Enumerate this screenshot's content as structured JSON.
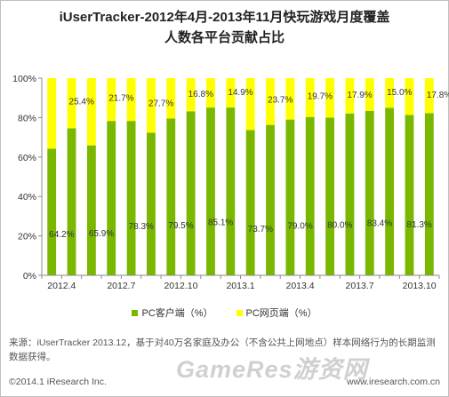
{
  "title_line1": "iUserTracker-2012年4月-2013年11月快玩游戏月度覆盖",
  "title_line2": "人数各平台贡献占比",
  "colors": {
    "pc_client": "#7ab800",
    "pc_web": "#ffff00"
  },
  "chart_data": {
    "type": "bar",
    "stacked": true,
    "percent": true,
    "ylim": [
      0,
      100
    ],
    "yticks": [
      "0%",
      "20%",
      "40%",
      "60%",
      "80%",
      "100%"
    ],
    "xtick_labels": [
      "2012.4",
      "2012.7",
      "2012.10",
      "2013.1",
      "2013.4",
      "2013.7",
      "2013.10"
    ],
    "categories": [
      "2012.4",
      "2012.5",
      "2012.6",
      "2012.7",
      "2012.8",
      "2012.9",
      "2012.10",
      "2012.11",
      "2012.12",
      "2013.1",
      "2013.2",
      "2013.3",
      "2013.4",
      "2013.5",
      "2013.6",
      "2013.7",
      "2013.8",
      "2013.9",
      "2013.10",
      "2013.11"
    ],
    "series": [
      {
        "name": "PC客户端（%）",
        "values": [
          64.2,
          74.6,
          65.9,
          78.3,
          78.3,
          72.3,
          79.5,
          83.2,
          85.1,
          85.1,
          73.7,
          76.3,
          79.0,
          80.3,
          80.0,
          82.1,
          83.4,
          85.0,
          81.3,
          82.2
        ]
      },
      {
        "name": "PC网页端（%）",
        "values": [
          35.8,
          25.4,
          34.1,
          21.7,
          21.7,
          27.7,
          20.5,
          16.8,
          14.9,
          14.9,
          26.3,
          23.7,
          21.0,
          19.7,
          20.0,
          17.9,
          16.6,
          15.0,
          18.7,
          17.8
        ]
      }
    ],
    "bottom_labels": [
      {
        "index": 0,
        "text": "64.2%"
      },
      {
        "index": 2,
        "text": "65.9%"
      },
      {
        "index": 4,
        "text": "78.3%"
      },
      {
        "index": 6,
        "text": "79.5%"
      },
      {
        "index": 8,
        "text": "85.1%"
      },
      {
        "index": 10,
        "text": "73.7%"
      },
      {
        "index": 12,
        "text": "79.0%"
      },
      {
        "index": 14,
        "text": "80.0%"
      },
      {
        "index": 16,
        "text": "83.4%"
      },
      {
        "index": 18,
        "text": "81.3%"
      }
    ],
    "top_labels": [
      {
        "index": 1,
        "text": "25.4%"
      },
      {
        "index": 3,
        "text": "21.7%"
      },
      {
        "index": 5,
        "text": "27.7%"
      },
      {
        "index": 7,
        "text": "16.8%"
      },
      {
        "index": 9,
        "text": "14.9%"
      },
      {
        "index": 11,
        "text": "23.7%"
      },
      {
        "index": 13,
        "text": "19.7%"
      },
      {
        "index": 15,
        "text": "17.9%"
      },
      {
        "index": 17,
        "text": "15.0%"
      },
      {
        "index": 19,
        "text": "17.8%"
      }
    ]
  },
  "legend": {
    "pc_client": "PC客户端（%）",
    "pc_web": "PC网页端（%）"
  },
  "source_text": "来源：iUserTracker 2013.12，基于对40万名家庭及办公（不含公共上网地点）样本网络行为的长期监测数据获得。",
  "copyright": "©2014.1 iResearch Inc.",
  "website": "www.iresearch.com.cn",
  "watermark": "GameRes游资网"
}
